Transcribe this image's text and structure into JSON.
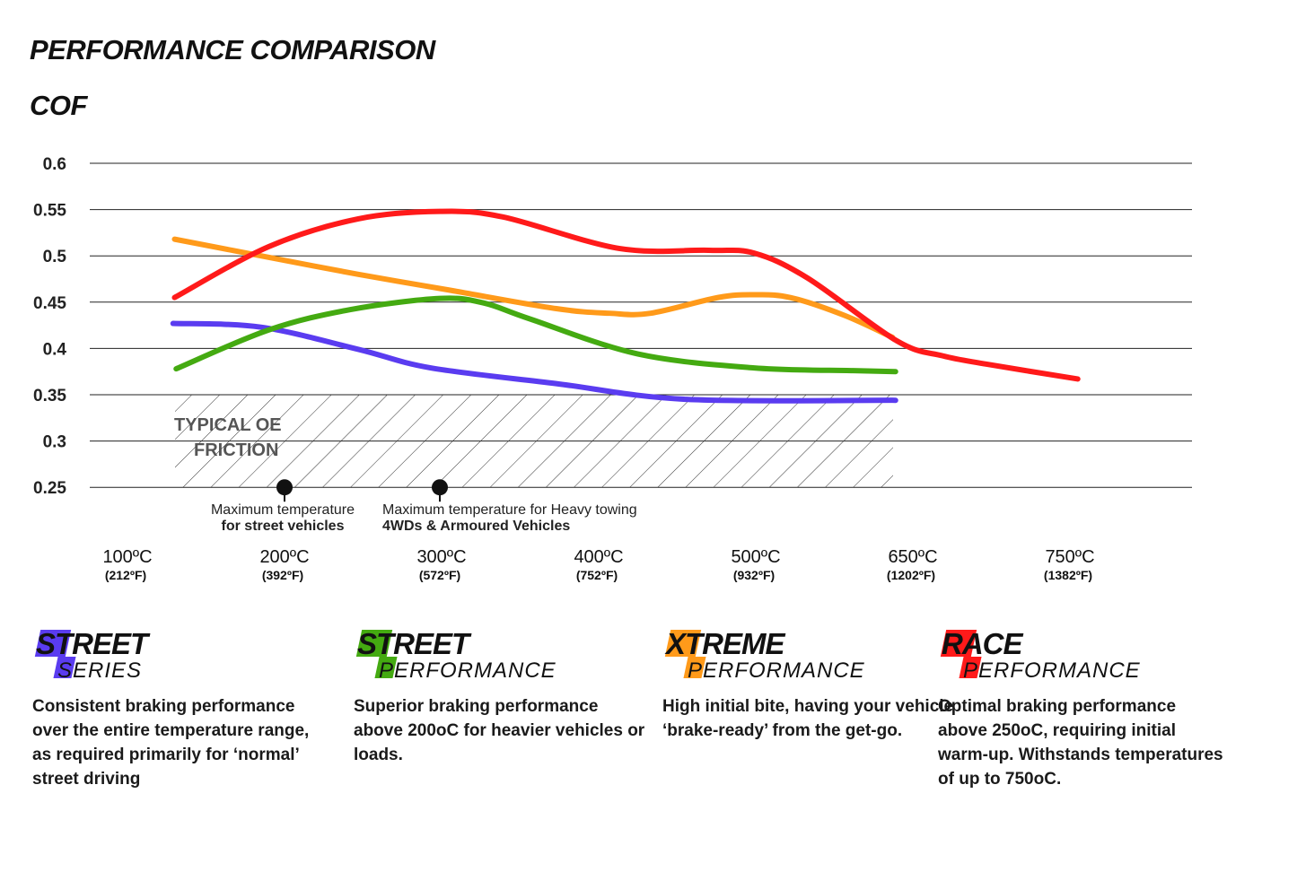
{
  "title": "PERFORMANCE COMPARISON",
  "chart_data": {
    "type": "line",
    "ylabel": "COF",
    "ylim": [
      0.25,
      0.6
    ],
    "yticks": [
      "0.6",
      "0.55",
      "0.5",
      "0.45",
      "0.4",
      "0.35",
      "0.3",
      "0.25"
    ],
    "grid": true,
    "categories": [
      {
        "c": "100ºC",
        "f": "(212ºF)"
      },
      {
        "c": "200ºC",
        "f": "(392ºF)"
      },
      {
        "c": "300ºC",
        "f": "(572ºF)"
      },
      {
        "c": "400ºC",
        "f": "(752ºF)"
      },
      {
        "c": "500ºC",
        "f": "(932ºF)"
      },
      {
        "c": "650ºC",
        "f": "(1202ºF)"
      },
      {
        "c": "750ºC",
        "f": "(1382ºF)"
      }
    ],
    "region": {
      "label_line1": "TYPICAL OE",
      "label_line2": "FRICTION",
      "y_range": [
        0.25,
        0.35
      ]
    },
    "markers": [
      {
        "x": 1.0,
        "line1": "Maximum temperature",
        "line2": "for street vehicles"
      },
      {
        "x": 2.0,
        "line1": "Maximum temperature for Heavy towing",
        "line2": "4WDs & Armoured Vehicles"
      }
    ],
    "series": [
      {
        "color": "#ff1a1a",
        "points": [
          [
            0.3,
            0.455
          ],
          [
            0.9,
            0.51
          ],
          [
            1.47,
            0.54
          ],
          [
            1.99,
            0.548
          ],
          [
            2.39,
            0.542
          ],
          [
            3.13,
            0.508
          ],
          [
            3.7,
            0.506
          ],
          [
            3.99,
            0.503
          ],
          [
            4.33,
            0.476
          ],
          [
            4.9,
            0.408
          ],
          [
            5.19,
            0.392
          ],
          [
            5.47,
            0.383
          ],
          [
            6.05,
            0.367
          ]
        ]
      },
      {
        "color": "#ff9a1a",
        "points": [
          [
            0.3,
            0.518
          ],
          [
            0.85,
            0.5
          ],
          [
            1.47,
            0.48
          ],
          [
            2.05,
            0.463
          ],
          [
            2.73,
            0.443
          ],
          [
            3.07,
            0.438
          ],
          [
            3.33,
            0.438
          ],
          [
            3.76,
            0.455
          ],
          [
            3.99,
            0.458
          ],
          [
            4.22,
            0.455
          ],
          [
            4.56,
            0.436
          ],
          [
            4.87,
            0.412
          ]
        ]
      },
      {
        "color": "#44aa11",
        "points": [
          [
            0.31,
            0.378
          ],
          [
            0.9,
            0.42
          ],
          [
            1.42,
            0.442
          ],
          [
            1.99,
            0.454
          ],
          [
            2.27,
            0.449
          ],
          [
            2.56,
            0.432
          ],
          [
            3.25,
            0.394
          ],
          [
            3.99,
            0.379
          ],
          [
            4.62,
            0.376
          ],
          [
            4.89,
            0.375
          ]
        ]
      },
      {
        "color": "#5a3cf0",
        "points": [
          [
            0.29,
            0.427
          ],
          [
            0.85,
            0.423
          ],
          [
            1.47,
            0.399
          ],
          [
            1.93,
            0.379
          ],
          [
            2.73,
            0.362
          ],
          [
            3.56,
            0.345
          ],
          [
            4.89,
            0.344
          ]
        ]
      }
    ]
  },
  "legend": [
    {
      "big": "STREET",
      "small": "SERIES",
      "color": "#5a3cf0",
      "desc": "Consistent braking performance over the entire temperature range, as required primarily for ‘normal’ street driving"
    },
    {
      "big": "STREET",
      "small": "PERFORMANCE",
      "color": "#44aa11",
      "desc": "Superior braking performance above 200oC for heavier vehicles or loads."
    },
    {
      "big": "XTREME",
      "small": "PERFORMANCE",
      "color": "#ff9a1a",
      "desc": "High initial bite, having your vehicle ‘brake-ready’ from the get-go."
    },
    {
      "big": "RACE",
      "small": "PERFORMANCE",
      "color": "#ff1a1a",
      "desc": "Optimal braking performance above 250oC, requiring initial warm-up. Withstands temperatures of up to 750oC."
    }
  ]
}
